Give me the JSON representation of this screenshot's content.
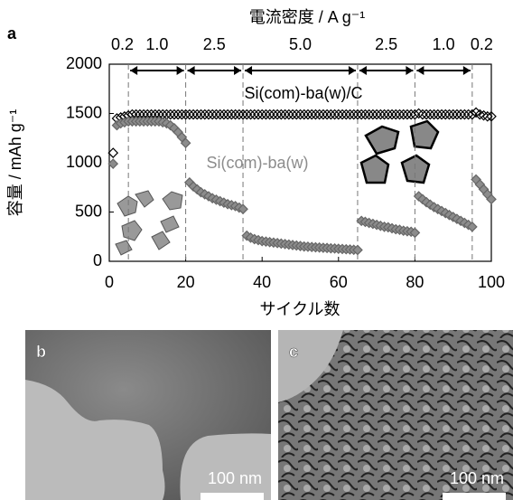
{
  "chart_data": {
    "type": "scatter",
    "panel_label": "a",
    "top_axis_label": "電流密度 / A g⁻¹",
    "rates": [
      "0.2",
      "1.0",
      "2.5",
      "5.0",
      "2.5",
      "1.0",
      "0.2"
    ],
    "rate_boundaries": [
      5,
      20,
      35,
      65,
      80,
      95
    ],
    "x_label": "サイクル数",
    "y_label": "容量 / mAh g⁻¹",
    "x": [
      1,
      2,
      3,
      4,
      5,
      6,
      7,
      8,
      9,
      10,
      11,
      12,
      13,
      14,
      15,
      16,
      17,
      18,
      19,
      20,
      21,
      22,
      23,
      24,
      25,
      26,
      27,
      28,
      29,
      30,
      31,
      32,
      33,
      34,
      35,
      36,
      37,
      38,
      39,
      40,
      41,
      42,
      43,
      44,
      45,
      46,
      47,
      48,
      49,
      50,
      51,
      52,
      53,
      54,
      55,
      56,
      57,
      58,
      59,
      60,
      61,
      62,
      63,
      64,
      65,
      66,
      67,
      68,
      69,
      70,
      71,
      72,
      73,
      74,
      75,
      76,
      77,
      78,
      79,
      80,
      81,
      82,
      83,
      84,
      85,
      86,
      87,
      88,
      89,
      90,
      91,
      92,
      93,
      94,
      95,
      96,
      97,
      98,
      99,
      100
    ],
    "series": [
      {
        "name": "Si(com)-ba(w)/C",
        "color": "#000000",
        "values": [
          1100,
          1450,
          1460,
          1470,
          1480,
          1490,
          1490,
          1490,
          1490,
          1490,
          1490,
          1490,
          1490,
          1490,
          1490,
          1490,
          1490,
          1490,
          1490,
          1490,
          1490,
          1490,
          1490,
          1490,
          1490,
          1490,
          1490,
          1490,
          1490,
          1490,
          1490,
          1490,
          1490,
          1490,
          1490,
          1490,
          1490,
          1490,
          1490,
          1490,
          1490,
          1490,
          1490,
          1490,
          1490,
          1490,
          1490,
          1490,
          1490,
          1490,
          1490,
          1490,
          1490,
          1490,
          1490,
          1490,
          1490,
          1490,
          1490,
          1490,
          1490,
          1490,
          1490,
          1490,
          1490,
          1490,
          1490,
          1490,
          1490,
          1490,
          1490,
          1490,
          1490,
          1490,
          1490,
          1490,
          1490,
          1490,
          1490,
          1490,
          1500,
          1490,
          1490,
          1490,
          1490,
          1490,
          1490,
          1490,
          1490,
          1490,
          1490,
          1490,
          1490,
          1490,
          1490,
          1510,
          1490,
          1480,
          1470,
          1470
        ]
      },
      {
        "name": "Si(com)-ba(w)",
        "color": "#8c8c8c",
        "values": [
          990,
          1380,
          1400,
          1410,
          1420,
          1420,
          1420,
          1420,
          1420,
          1420,
          1420,
          1420,
          1420,
          1410,
          1400,
          1380,
          1350,
          1310,
          1260,
          1200,
          800,
          760,
          730,
          700,
          680,
          660,
          640,
          625,
          610,
          595,
          580,
          570,
          560,
          545,
          530,
          260,
          240,
          225,
          215,
          205,
          200,
          195,
          190,
          185,
          180,
          175,
          170,
          165,
          160,
          155,
          150,
          148,
          145,
          142,
          140,
          137,
          135,
          132,
          130,
          127,
          125,
          122,
          120,
          117,
          115,
          410,
          400,
          390,
          380,
          370,
          360,
          350,
          345,
          335,
          325,
          320,
          310,
          305,
          300,
          290,
          660,
          630,
          600,
          575,
          550,
          530,
          510,
          490,
          470,
          450,
          430,
          410,
          390,
          370,
          350,
          830,
          780,
          730,
          680,
          630
        ]
      }
    ],
    "xlim": [
      0,
      100
    ],
    "xticks": [
      0,
      20,
      40,
      60,
      80,
      100
    ],
    "ylim": [
      0,
      2000
    ],
    "yticks": [
      0,
      500,
      1000,
      1500,
      2000
    ],
    "grid": false
  },
  "panels": [
    {
      "label": "b",
      "scale_bar": "100 nm"
    },
    {
      "label": "c",
      "scale_bar": "100 nm"
    }
  ]
}
